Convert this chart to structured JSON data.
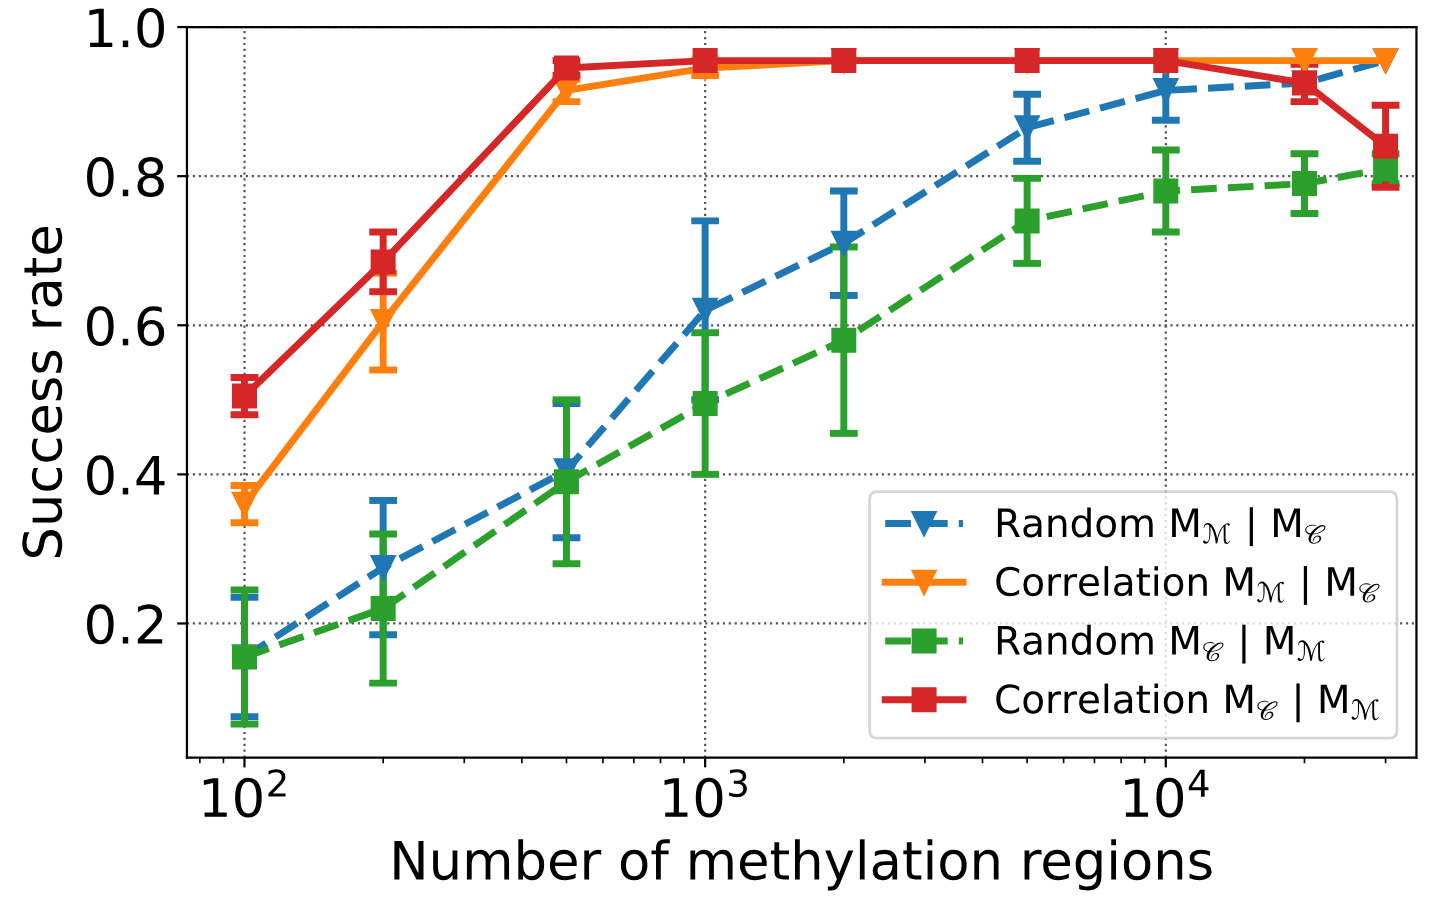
{
  "chart_data": {
    "type": "line",
    "xlabel": "Number of methylation regions",
    "ylabel": "Success rate",
    "x": [
      100,
      200,
      500,
      1000,
      2000,
      5000,
      10000,
      20000,
      30000
    ],
    "log": "x",
    "xlim": [
      75,
      35000
    ],
    "xticks": [
      {
        "value": 100,
        "label": "10$^{2}$"
      },
      {
        "value": 1000,
        "label": "10$^{3}$"
      },
      {
        "value": 10000,
        "label": "10$^{4}$"
      }
    ],
    "ylim": [
      0.02,
      1.0
    ],
    "yticks": [
      {
        "value": 0.2,
        "label": "0.2"
      },
      {
        "value": 0.4,
        "label": "0.4"
      },
      {
        "value": 0.6,
        "label": "0.6"
      },
      {
        "value": 0.8,
        "label": "0.8"
      },
      {
        "value": 1.0,
        "label": "1.0"
      }
    ],
    "grid": true,
    "legend": "bottom right",
    "series": [
      {
        "name": "Random M$_{ℳ}$ | M$_{𝒞}$",
        "color": "#1f77b4",
        "marker": "triangle",
        "line_style": "dashed",
        "values": [
          0.155,
          0.275,
          0.405,
          0.62,
          0.71,
          0.865,
          0.915,
          0.925,
          0.955
        ],
        "errors": [
          0.08,
          0.09,
          0.09,
          0.12,
          0.07,
          0.045,
          0.04,
          null,
          null
        ]
      },
      {
        "name": "Correlation M$_{ℳ}$ | M$_{𝒞}$",
        "color": "#ff7f0e",
        "marker": "triangle",
        "line_style": "solid",
        "values": [
          0.36,
          0.605,
          0.915,
          0.945,
          0.955,
          0.955,
          0.955,
          0.955,
          0.955
        ],
        "errors": [
          0.025,
          0.065,
          0.015,
          0.01,
          null,
          null,
          null,
          null,
          null
        ]
      },
      {
        "name": "Random M$_{𝒞}$ | M$_{ℳ}$",
        "color": "#2ca02c",
        "marker": "square",
        "line_style": "dashed",
        "values": [
          0.155,
          0.22,
          0.39,
          0.495,
          0.58,
          0.74,
          0.78,
          0.79,
          0.81
        ],
        "errors": [
          0.09,
          0.1,
          0.11,
          0.095,
          0.125,
          0.057,
          0.055,
          0.04,
          0.02
        ]
      },
      {
        "name": "Correlation M$_{𝒞}$ | M$_{ℳ}$",
        "color": "#d62728",
        "marker": "square",
        "line_style": "solid",
        "values": [
          0.505,
          0.685,
          0.945,
          0.955,
          0.955,
          0.955,
          0.955,
          0.925,
          0.84
        ],
        "errors": [
          0.025,
          0.04,
          0.01,
          null,
          null,
          null,
          null,
          0.025,
          0.055
        ]
      }
    ]
  }
}
